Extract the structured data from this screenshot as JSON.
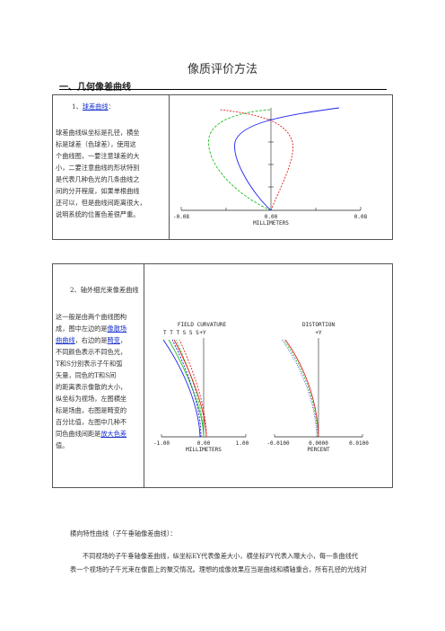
{
  "doc_title": "像质评价方法",
  "section1_heading": "一、几何像差曲线",
  "item1": {
    "num": "1、",
    "link": "球差曲线",
    "suffix": "：",
    "lines": [
      "球差曲线纵坐标是孔径，横坐",
      "标是球差（色球差），使用这",
      "个曲线图，一要注意球差的大",
      "小，二要注意曲线的形状特别",
      "是代表几种色光的几条曲线之",
      "间的分开程度，如果单根曲线",
      "还可以，但是曲线间距离很大，",
      "说明系统的位置色差很严重。"
    ],
    "chart": {
      "x_ticks": [
        "-0.08",
        "0.00",
        "0.08"
      ],
      "x_label": "MILLIMETERS"
    }
  },
  "item2": {
    "num": "2、轴外细光束像差曲线",
    "p1": "这一般是由两个曲线图构",
    "p2": "成，图中左边的是",
    "link_astig1": "像散场",
    "link_astig2": "曲曲线",
    "p3": "，右边的是",
    "link_dist": "畸变",
    "p4": "，",
    "lines": [
      "不同颜色表示不同色光，",
      "T和S分别表示子午和弧",
      "矢量，同色的T和S间",
      "的距离表示像散的大小，",
      "纵坐标为视场，左图横坐",
      "标是场曲，右图是畸变的",
      "百分比值，左图中几种不"
    ],
    "p5": "同色曲线间距是",
    "link_color": "放大色差",
    "p6": "值。",
    "field_chart": {
      "title": "FIELD CURVATURE",
      "legend": "T T T  S S S",
      "axis_label": "+Y",
      "x_ticks": [
        "-1.00",
        "0.00",
        "1.00"
      ],
      "x_label": "MILLIMETERS"
    },
    "dist_chart": {
      "title": "DISTORTION",
      "axis_label": "+Y",
      "x_ticks": [
        "-0.0100",
        "0.0000",
        "0.0100"
      ],
      "x_label": "PERCENT"
    }
  },
  "section2_heading": "横向特性曲线（子午垂轴像差曲线）：",
  "section2_para_l1": "不同视场的子午垂轴像差曲线，纵坐标EY代表像差大小，横坐标PY代表入瞳大小，每一条曲线代",
  "section2_para_l2": "表一个视场的子午光束在像面上的聚交情况。理想的成像效果应当是曲线和横轴重合，所有孔径的光线对",
  "colors": {
    "red": "#e02020",
    "green": "#20c020",
    "blue": "#2020ee",
    "link": "#1a33cc"
  }
}
